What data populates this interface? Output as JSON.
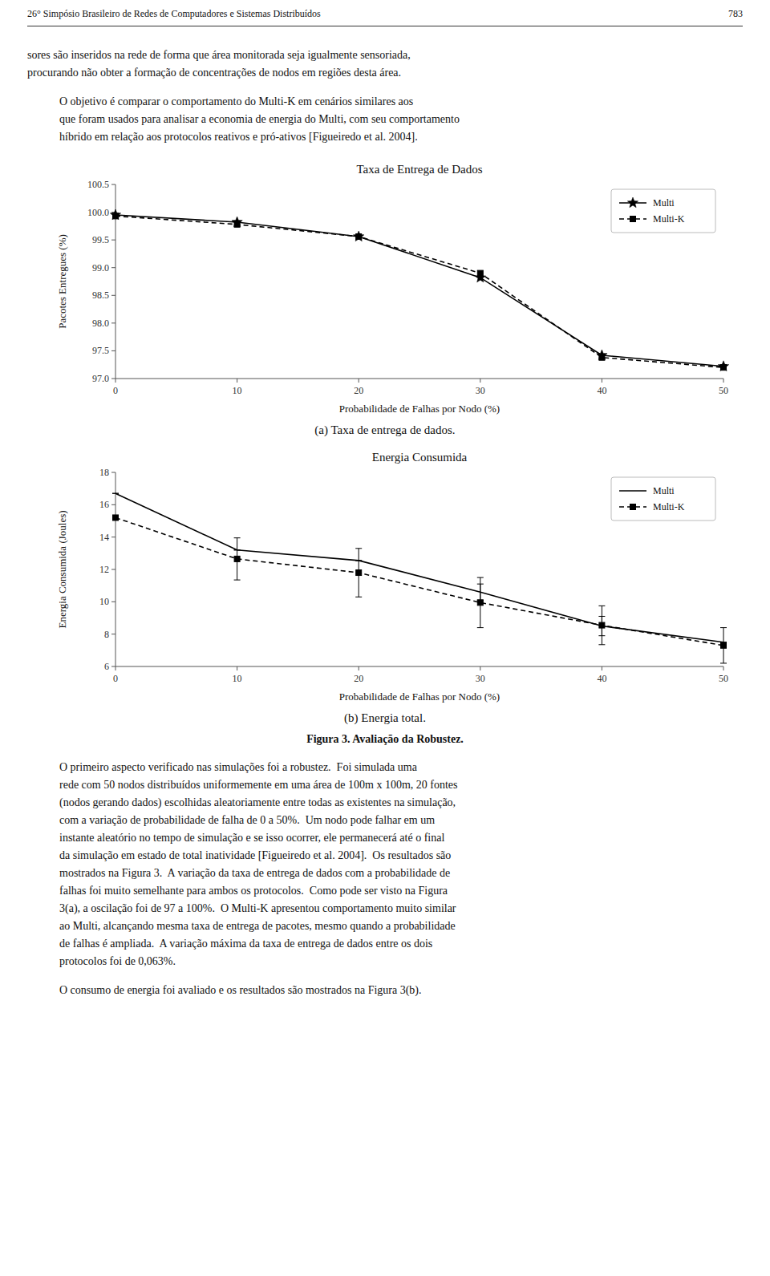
{
  "header_left": "26° Simpósio Brasileiro de Redes de Computadores e Sistemas Distribuídos",
  "header_right": "783",
  "para1": "sores são inseridos na rede de forma que área monitorada seja igualmente sensoriada,\nprocurando não obter a formação de concentrações de nodos em regiões desta área.",
  "para2": "O objetivo é comparar o comportamento do Multi-K em cenários similares aos\nque foram usados para analisar a economia de energia do Multi, com seu comportamento\nhíbrido em relação aos protocolos reativos e pró-ativos [Figueiredo et al. 2004].",
  "figure_caption": "Figura 3. Avaliação da Robustez.",
  "para3": "O primeiro aspecto verificado nas simulações foi a robustez.  Foi simulada uma\nrede com 50 nodos distribuídos uniformemente em uma área de 100m x 100m, 20 fontes\n(nodos gerando dados) escolhidas aleatoriamente entre todas as existentes na simulação,\ncom a variação de probabilidade de falha de 0 a 50%.  Um nodo pode falhar em um\ninstante aleatório no tempo de simulação e se isso ocorrer, ele permanecerá até o final\nda simulação em estado de total inatividade [Figueiredo et al. 2004].  Os resultados são\nmostrados na Figura 3.  A variação da taxa de entrega de dados com a probabilidade de\nfalhas foi muito semelhante para ambos os protocolos.  Como pode ser visto na Figura\n3(a), a oscilação foi de 97 a 100%.  O Multi-K apresentou comportamento muito similar\nao Multi, alcançando mesma taxa de entrega de pacotes, mesmo quando a probabilidade\nde falhas é ampliada.  A variação máxima da taxa de entrega de dados entre os dois\nprotocolos foi de 0,063%.",
  "para4": "O consumo de energia foi avaliado e os resultados são mostrados na Figura 3(b).",
  "chart_data": [
    {
      "type": "line",
      "title": "Taxa de Entrega de Dados",
      "xlabel": "Probabilidade de Falhas por Nodo (%)",
      "ylabel": "Pacotes Entregues (%)",
      "caption": "(a) Taxa de entrega de dados.",
      "x": [
        0,
        10,
        20,
        30,
        40,
        50
      ],
      "series": [
        {
          "name": "Multi",
          "color": "#000000",
          "marker": "star",
          "line_style": "solid",
          "values": [
            99.95,
            99.82,
            99.56,
            98.82,
            97.42,
            97.22
          ]
        },
        {
          "name": "Multi-K",
          "color": "#000000",
          "marker": "square",
          "line_style": "dashed",
          "values": [
            99.93,
            99.78,
            99.56,
            98.9,
            97.38,
            97.2
          ]
        }
      ],
      "xlim": [
        0,
        50
      ],
      "xticks": [
        0,
        10,
        20,
        30,
        40,
        50
      ],
      "ylim": [
        97.0,
        100.5
      ],
      "yticks": [
        {
          "value": 97,
          "label": "97.0"
        },
        97.5,
        {
          "value": 98,
          "label": "98.0"
        },
        98.5,
        {
          "value": 99,
          "label": "99.0"
        },
        99.5,
        {
          "value": 100,
          "label": "100.0"
        },
        100.5
      ],
      "legend": "upper right",
      "grid": false
    },
    {
      "type": "line",
      "title": "Energia Consumida",
      "xlabel": "Probabilidade de Falhas por Nodo (%)",
      "ylabel": "Energia Consumida (Joules)",
      "caption": "(b) Energia total.",
      "x": [
        0,
        10,
        20,
        30,
        40,
        50
      ],
      "series": [
        {
          "name": "Multi",
          "color": "#000000",
          "marker": "none",
          "line_style": "solid",
          "values": [
            16.7,
            13.2,
            12.55,
            10.6,
            8.5,
            7.5
          ],
          "errors": [
            0.0,
            0.0,
            0.0,
            0.5,
            0.6,
            0.0
          ]
        },
        {
          "name": "Multi-K",
          "color": "#000000",
          "marker": "square",
          "line_style": "dashed",
          "values": [
            15.2,
            12.65,
            11.8,
            9.95,
            8.55,
            7.3
          ],
          "errors": [
            0.0,
            1.3,
            1.5,
            1.55,
            1.2,
            1.1
          ]
        }
      ],
      "xlim": [
        0,
        50
      ],
      "xticks": [
        0,
        10,
        20,
        30,
        40,
        50
      ],
      "ylim": [
        6.0,
        18.0
      ],
      "yticks": [
        6,
        8,
        10,
        12,
        14,
        16,
        18
      ],
      "legend": "upper right",
      "grid": false
    }
  ]
}
